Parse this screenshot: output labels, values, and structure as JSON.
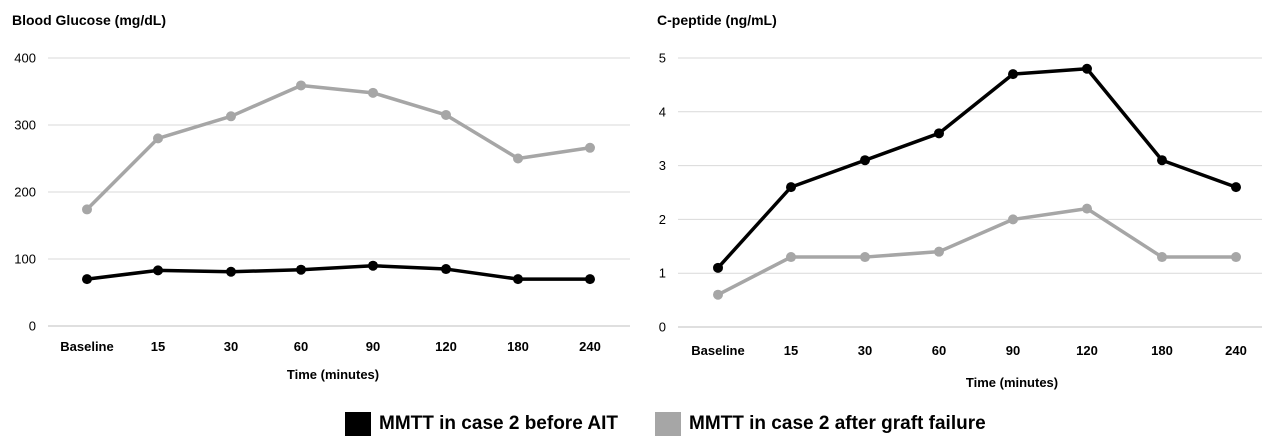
{
  "chart_data": [
    {
      "type": "line",
      "title": "Blood Glucose (mg/dL)",
      "xlabel": "Time (minutes)",
      "ylabel": "",
      "categories": [
        "Baseline",
        "15",
        "30",
        "60",
        "90",
        "120",
        "180",
        "240"
      ],
      "ylim": [
        0,
        400
      ],
      "yticks": [
        0,
        100,
        200,
        300,
        400
      ],
      "grid": true,
      "series": [
        {
          "name": "MMTT in case 2 before AIT",
          "color": "#000000",
          "values": [
            70,
            83,
            81,
            84,
            90,
            85,
            70,
            70
          ]
        },
        {
          "name": "MMTT in case 2 after graft failure",
          "color": "#a6a6a6",
          "values": [
            174,
            280,
            313,
            359,
            348,
            315,
            250,
            266
          ]
        }
      ]
    },
    {
      "type": "line",
      "title": "C-peptide (ng/mL)",
      "xlabel": "Time (minutes)",
      "ylabel": "",
      "categories": [
        "Baseline",
        "15",
        "30",
        "60",
        "90",
        "120",
        "180",
        "240"
      ],
      "ylim": [
        0,
        5
      ],
      "yticks": [
        0,
        1,
        2,
        3,
        4,
        5
      ],
      "grid": true,
      "series": [
        {
          "name": "MMTT in case 2 before AIT",
          "color": "#000000",
          "values": [
            1.1,
            2.6,
            3.1,
            3.6,
            4.7,
            4.8,
            3.1,
            2.6
          ]
        },
        {
          "name": "MMTT in case 2 after graft failure",
          "color": "#a6a6a6",
          "values": [
            0.6,
            1.3,
            1.3,
            1.4,
            2.0,
            2.2,
            1.3,
            1.3
          ]
        }
      ]
    }
  ],
  "legend": {
    "placement": "bottom-center",
    "items": [
      {
        "label": "MMTT in case 2 before AIT",
        "color": "#000000"
      },
      {
        "label": "MMTT in case 2 after graft failure",
        "color": "#a6a6a6"
      }
    ]
  }
}
